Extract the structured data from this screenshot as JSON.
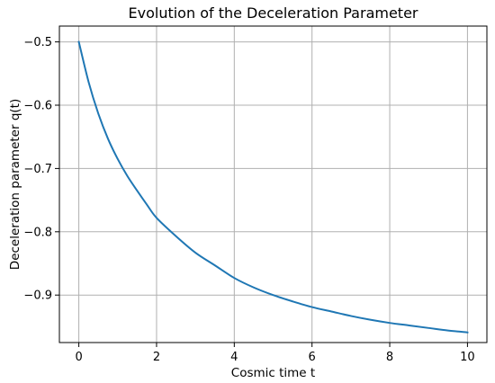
{
  "chart_data": {
    "type": "line",
    "title": "Evolution of the Deceleration Parameter",
    "xlabel": "Cosmic time t",
    "ylabel": "Deceleration parameter q(t)",
    "xlim": [
      -0.5,
      10.5
    ],
    "ylim": [
      -0.975,
      -0.475
    ],
    "xticks": [
      0,
      2,
      4,
      6,
      8,
      10
    ],
    "yticks": [
      -0.5,
      -0.6,
      -0.7,
      -0.8,
      -0.9
    ],
    "xtick_labels": [
      "0",
      "2",
      "4",
      "6",
      "8",
      "10"
    ],
    "ytick_labels": [
      "−0.5",
      "−0.6",
      "−0.7",
      "−0.8",
      "−0.9"
    ],
    "grid": true,
    "series": [
      {
        "color": "#1f77b4",
        "x": [
          0,
          0.25,
          0.5,
          0.75,
          1,
          1.25,
          1.5,
          1.75,
          2,
          2.5,
          3,
          3.5,
          4,
          4.5,
          5,
          5.5,
          6,
          6.5,
          7,
          7.5,
          8,
          8.5,
          9,
          9.5,
          10
        ],
        "y": [
          -0.5,
          -0.563,
          -0.613,
          -0.653,
          -0.685,
          -0.712,
          -0.735,
          -0.757,
          -0.778,
          -0.807,
          -0.833,
          -0.853,
          -0.873,
          -0.888,
          -0.9,
          -0.91,
          -0.919,
          -0.926,
          -0.933,
          -0.939,
          -0.944,
          -0.948,
          -0.952,
          -0.956,
          -0.959
        ]
      }
    ]
  }
}
